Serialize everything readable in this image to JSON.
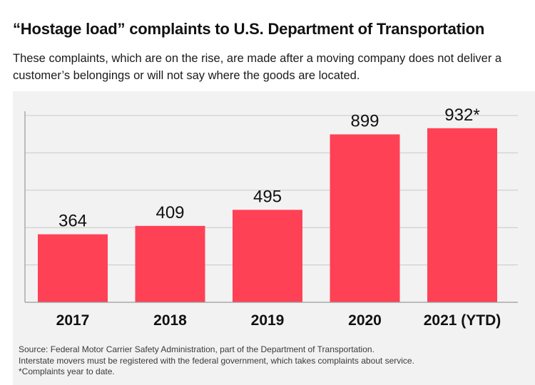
{
  "header": {
    "title": "“Hostage load” complaints to U.S. Department of Transportation",
    "subtitle": "These complaints, which are on the rise, are made after a moving company does not deliver a customer’s belongings or will not say where the goods are located."
  },
  "footer": {
    "source": "Source: Federal Motor Carrier Safety Administration, part of the Department of Transportation.",
    "note": "Interstate movers must be registered with the federal government, which takes complaints about service.",
    "footnote": "*Complaints year to date."
  },
  "colors": {
    "bar": "#ff4155",
    "grid": "#c8c8c8",
    "axis": "#9a9a9a",
    "panel": "#f2f2f2",
    "text": "#111111"
  },
  "chart_data": {
    "type": "bar",
    "title": "“Hostage load” complaints to U.S. Department of Transportation",
    "categories": [
      "2017",
      "2018",
      "2019",
      "2020",
      "2021 (YTD)"
    ],
    "values": [
      364,
      409,
      495,
      899,
      932
    ],
    "data_labels": [
      "364",
      "409",
      "495",
      "899",
      "932*"
    ],
    "xlabel": "",
    "ylabel": "",
    "ylim": [
      0,
      1000
    ],
    "grid": true,
    "gridlines": [
      200,
      400,
      600,
      800,
      1000
    ],
    "legend": "none"
  }
}
